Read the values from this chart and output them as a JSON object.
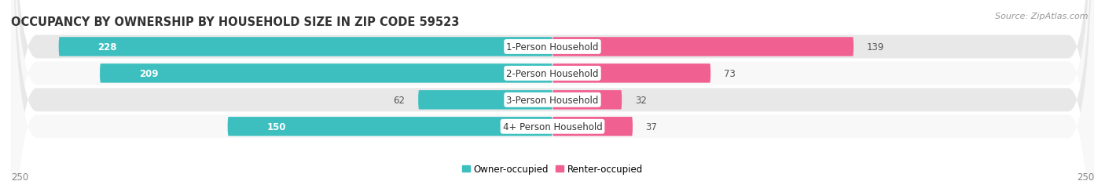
{
  "title": "OCCUPANCY BY OWNERSHIP BY HOUSEHOLD SIZE IN ZIP CODE 59523",
  "source": "Source: ZipAtlas.com",
  "categories": [
    "1-Person Household",
    "2-Person Household",
    "3-Person Household",
    "4+ Person Household"
  ],
  "owner_values": [
    228,
    209,
    62,
    150
  ],
  "renter_values": [
    139,
    73,
    32,
    37
  ],
  "owner_color": "#3DBFBF",
  "owner_color_light": "#7DD8D8",
  "renter_color": "#F06090",
  "renter_color_light": "#F4A0BF",
  "label_bg_color": "#FFFFFF",
  "row_colors": [
    "#E8E8E8",
    "#F8F8F8",
    "#E8E8E8",
    "#F8F8F8"
  ],
  "x_max": 250,
  "axis_label_left": "250",
  "axis_label_right": "250",
  "owner_label": "Owner-occupied",
  "renter_label": "Renter-occupied",
  "title_fontsize": 10.5,
  "source_fontsize": 8,
  "bar_label_fontsize": 8.5,
  "category_fontsize": 8.5,
  "legend_fontsize": 8.5,
  "axis_tick_fontsize": 8.5,
  "background_color": "#FFFFFF",
  "owner_text_white": [
    true,
    true,
    false,
    true
  ],
  "renter_text_dark": [
    false,
    false,
    false,
    false
  ]
}
